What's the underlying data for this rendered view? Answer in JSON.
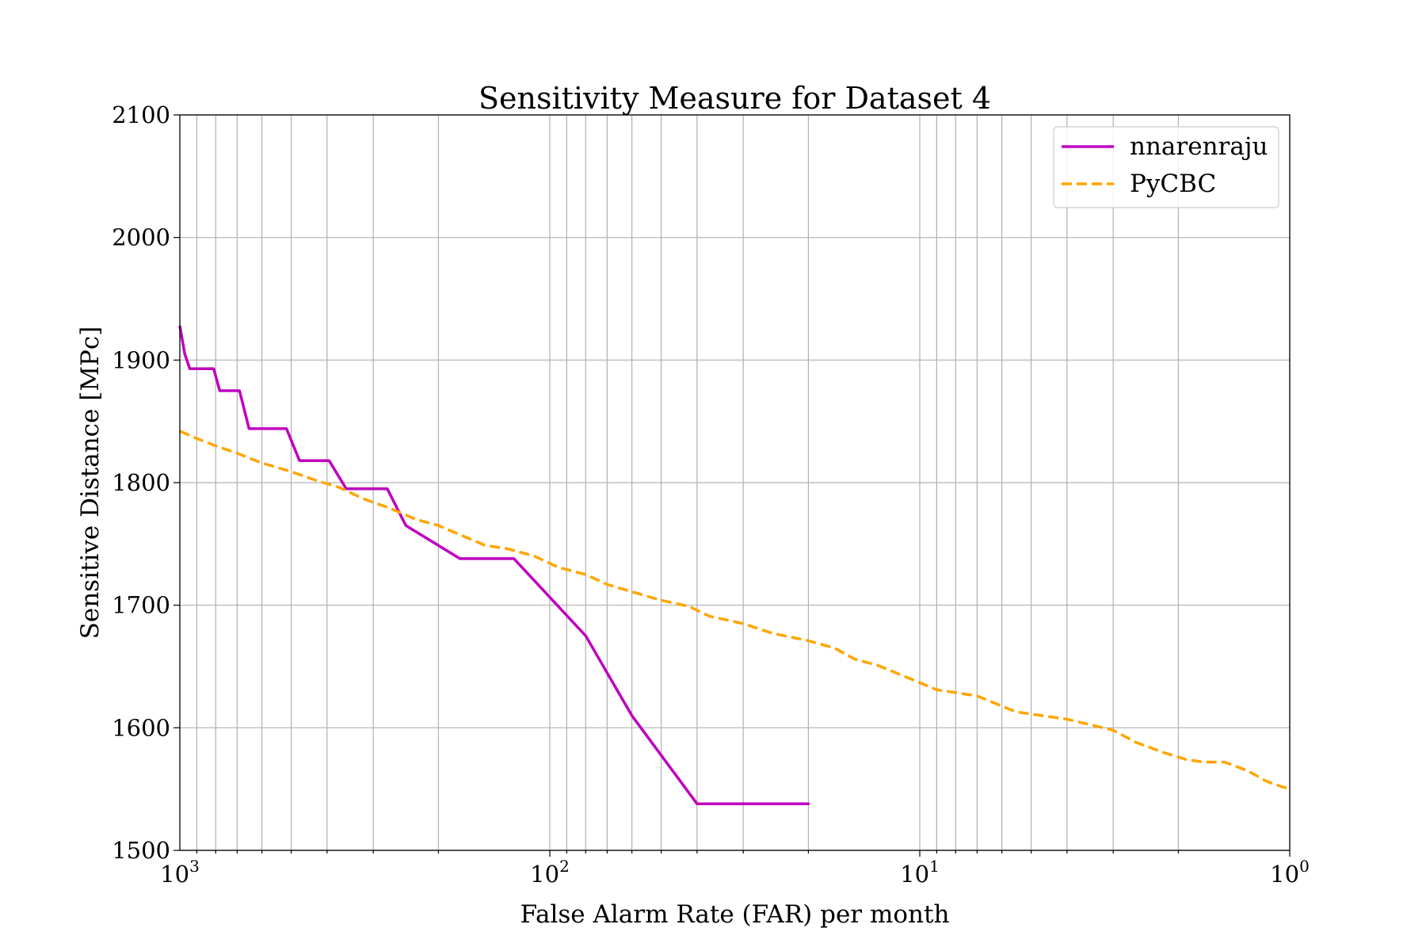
{
  "chart_data": {
    "type": "line",
    "title": "Sensitivity Measure for Dataset 4",
    "xlabel": "False Alarm Rate (FAR) per month",
    "ylabel": "Sensitive Distance [MPc]",
    "x_scale": "log",
    "x_inverted": true,
    "xlim": [
      1000,
      1
    ],
    "ylim": [
      1500,
      2100
    ],
    "grid": {
      "x_major": true,
      "x_minor": true,
      "y_major": true
    },
    "legend_position": "top-right",
    "x_ticks": [
      {
        "value": 1000,
        "base": "10",
        "exp": "3"
      },
      {
        "value": 100,
        "base": "10",
        "exp": "2"
      },
      {
        "value": 10,
        "base": "10",
        "exp": "1"
      },
      {
        "value": 1,
        "base": "10",
        "exp": "0"
      }
    ],
    "y_ticks": [
      "1500",
      "1600",
      "1700",
      "1800",
      "1900",
      "2000",
      "2100"
    ],
    "series": [
      {
        "name": "nnarenraju",
        "color": "#bf00bf",
        "style": "solid",
        "points": [
          [
            1000,
            1928
          ],
          [
            970,
            1905
          ],
          [
            940,
            1893
          ],
          [
            810,
            1893
          ],
          [
            780,
            1875
          ],
          [
            690,
            1875
          ],
          [
            650,
            1844
          ],
          [
            515,
            1844
          ],
          [
            475,
            1818
          ],
          [
            395,
            1818
          ],
          [
            355,
            1795
          ],
          [
            275,
            1795
          ],
          [
            245,
            1765
          ],
          [
            175,
            1738
          ],
          [
            125,
            1738
          ],
          [
            80,
            1675
          ],
          [
            60,
            1610
          ],
          [
            40,
            1538
          ],
          [
            20,
            1538
          ],
          [
            40,
            1538
          ],
          [
            20,
            1538
          ]
        ]
      },
      {
        "name": "PyCBC",
        "color": "#ffa500",
        "style": "dashed",
        "points": [
          [
            1000,
            1842
          ],
          [
            900,
            1836
          ],
          [
            800,
            1830
          ],
          [
            700,
            1824
          ],
          [
            600,
            1816
          ],
          [
            500,
            1809
          ],
          [
            430,
            1802
          ],
          [
            370,
            1796
          ],
          [
            320,
            1787
          ],
          [
            270,
            1779
          ],
          [
            230,
            1770
          ],
          [
            200,
            1765
          ],
          [
            170,
            1756
          ],
          [
            150,
            1749
          ],
          [
            130,
            1746
          ],
          [
            110,
            1740
          ],
          [
            95,
            1731
          ],
          [
            80,
            1725
          ],
          [
            70,
            1717
          ],
          [
            60,
            1711
          ],
          [
            50,
            1704
          ],
          [
            42,
            1699
          ],
          [
            37,
            1691
          ],
          [
            30,
            1685
          ],
          [
            25,
            1677
          ],
          [
            20,
            1671
          ],
          [
            17,
            1665
          ],
          [
            15,
            1656
          ],
          [
            13,
            1651
          ],
          [
            11,
            1642
          ],
          [
            9,
            1631
          ],
          [
            7,
            1626
          ],
          [
            5.5,
            1613
          ],
          [
            4,
            1607
          ],
          [
            3,
            1598
          ],
          [
            2.6,
            1588
          ],
          [
            2.2,
            1580
          ],
          [
            1.9,
            1574
          ],
          [
            1.7,
            1572
          ],
          [
            1.5,
            1572
          ],
          [
            1.3,
            1565
          ],
          [
            1.15,
            1556
          ],
          [
            1.05,
            1552
          ],
          [
            1.0,
            1550
          ]
        ]
      }
    ]
  }
}
